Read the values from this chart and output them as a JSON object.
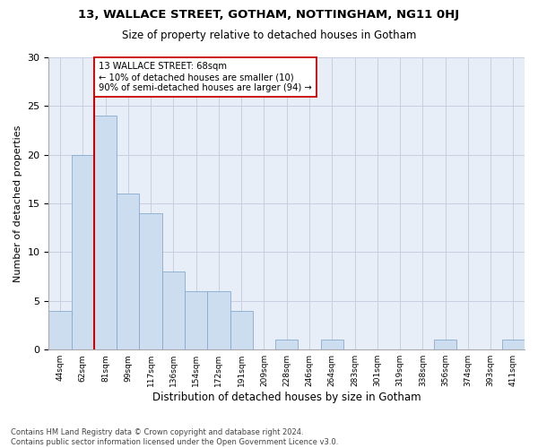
{
  "title1": "13, WALLACE STREET, GOTHAM, NOTTINGHAM, NG11 0HJ",
  "title2": "Size of property relative to detached houses in Gotham",
  "xlabel": "Distribution of detached houses by size in Gotham",
  "ylabel": "Number of detached properties",
  "categories": [
    "44sqm",
    "62sqm",
    "81sqm",
    "99sqm",
    "117sqm",
    "136sqm",
    "154sqm",
    "172sqm",
    "191sqm",
    "209sqm",
    "228sqm",
    "246sqm",
    "264sqm",
    "283sqm",
    "301sqm",
    "319sqm",
    "338sqm",
    "356sqm",
    "374sqm",
    "393sqm",
    "411sqm"
  ],
  "bar_fill_color": "#ccddf0",
  "bar_edge_color": "#88aacc",
  "vline_color": "#cc0000",
  "annotation_text": "13 WALLACE STREET: 68sqm\n← 10% of detached houses are smaller (10)\n90% of semi-detached houses are larger (94) →",
  "annotation_box_color": "white",
  "annotation_box_edge_color": "#cc0000",
  "grid_color": "#c5d0e0",
  "background_color": "#e8eef8",
  "ylim": [
    0,
    30
  ],
  "yticks": [
    0,
    5,
    10,
    15,
    20,
    25,
    30
  ],
  "footnote": "Contains HM Land Registry data © Crown copyright and database right 2024.\nContains public sector information licensed under the Open Government Licence v3.0.",
  "all_bar_values": [
    4,
    20,
    24,
    16,
    14,
    8,
    6,
    6,
    4,
    0,
    1,
    0,
    1,
    0,
    0,
    0,
    0,
    1,
    0,
    0,
    1
  ]
}
